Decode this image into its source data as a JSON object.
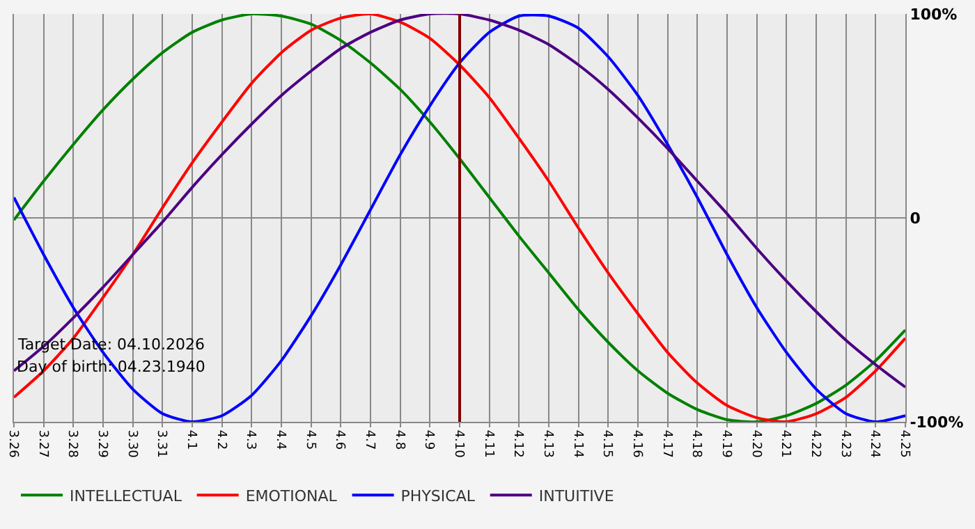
{
  "chart_data": {
    "type": "line",
    "categories": [
      "3.26",
      "3.27",
      "3.28",
      "3.29",
      "3.30",
      "3.31",
      "4.1",
      "4.2",
      "4.3",
      "4.4",
      "4.5",
      "4.6",
      "4.7",
      "4.8",
      "4.9",
      "4.10",
      "4.11",
      "4.12",
      "4.13",
      "4.14",
      "4.15",
      "4.16",
      "4.17",
      "4.18",
      "4.19",
      "4.20",
      "4.21",
      "4.22",
      "4.23",
      "4.24",
      "4.25"
    ],
    "series": [
      {
        "name": "INTELLECTUAL",
        "color": "#008000",
        "values": [
          -1,
          18,
          36,
          53,
          68,
          81,
          91,
          97,
          100,
          99,
          95,
          87,
          76,
          63,
          47,
          29,
          10,
          -9,
          -27,
          -45,
          -61,
          -75,
          -86,
          -94,
          -99,
          -100,
          -97,
          -91,
          -82,
          -70,
          -55
        ]
      },
      {
        "name": "EMOTIONAL",
        "color": "#ff0000",
        "values": [
          -88,
          -75,
          -59,
          -39,
          -18,
          5,
          27,
          47,
          66,
          81,
          92,
          98,
          100,
          96,
          88,
          75,
          59,
          39,
          18,
          -5,
          -27,
          -47,
          -66,
          -81,
          -92,
          -98,
          -100,
          -96,
          -88,
          -75,
          -59
        ]
      },
      {
        "name": "PHYSICAL",
        "color": "#0000ff",
        "values": [
          10,
          -18,
          -44,
          -66,
          -84,
          -96,
          -100,
          -97,
          -87,
          -70,
          -48,
          -23,
          4,
          31,
          55,
          76,
          91,
          99,
          99,
          93,
          79,
          60,
          36,
          10,
          -18,
          -44,
          -66,
          -84,
          -96,
          -100,
          -97
        ]
      },
      {
        "name": "INTUITIVE",
        "color": "#4b0082",
        "values": [
          -75,
          -63,
          -49,
          -34,
          -18,
          -2,
          15,
          31,
          46,
          60,
          72,
          83,
          91,
          97,
          100,
          100,
          97,
          92,
          85,
          75,
          63,
          49,
          34,
          18,
          2,
          -15,
          -31,
          -46,
          -60,
          -72,
          -83
        ]
      }
    ],
    "ylim": [
      -100,
      100
    ],
    "yticks": [
      {
        "value": -100,
        "label": "-100%"
      },
      0,
      {
        "value": 100,
        "label": "100%"
      }
    ],
    "grid": true,
    "legend": "bottom left",
    "marker": "none",
    "line_style": "solid",
    "ref_lines": [
      {
        "axis": "x",
        "value": "4.10",
        "color": "#800000"
      }
    ],
    "annotations": [
      "Target Date: 04.10.2026",
      "Day of birth: 04.23.1940"
    ]
  }
}
